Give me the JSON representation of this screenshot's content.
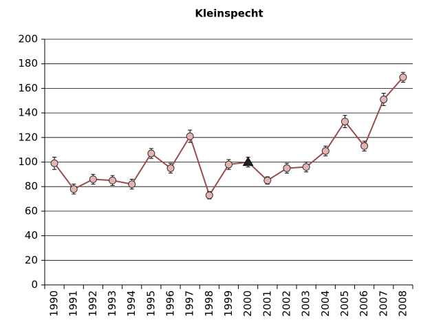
{
  "chart_data": {
    "type": "line",
    "title": "Kleinspecht",
    "categories": [
      "1990",
      "1991",
      "1992",
      "1993",
      "1994",
      "1995",
      "1996",
      "1997",
      "1998",
      "1999",
      "2000",
      "2001",
      "2002",
      "2003",
      "2004",
      "2005",
      "2006",
      "2007",
      "2008"
    ],
    "series": [
      {
        "color": "#9c4a4e",
        "marker_color": "#e6b3b3",
        "values": [
          99,
          78,
          86,
          85,
          82,
          107,
          95,
          121,
          73,
          98,
          100,
          85,
          95,
          96,
          109,
          133,
          113,
          151,
          169
        ],
        "errors": [
          5,
          4,
          4,
          4,
          4,
          4,
          4,
          5,
          3,
          4,
          4,
          3,
          4,
          4,
          4,
          5,
          4,
          5,
          4
        ],
        "markers": [
          "circle",
          "circle",
          "circle",
          "circle",
          "circle",
          "circle",
          "circle",
          "circle",
          "circle",
          "circle",
          "triangle",
          "circle",
          "circle",
          "circle",
          "circle",
          "circle",
          "circle",
          "circle",
          "circle"
        ]
      }
    ],
    "ylim": [
      0,
      200
    ],
    "yticks": [
      0,
      20,
      40,
      60,
      80,
      100,
      120,
      140,
      160,
      180,
      200
    ],
    "grid": true
  }
}
